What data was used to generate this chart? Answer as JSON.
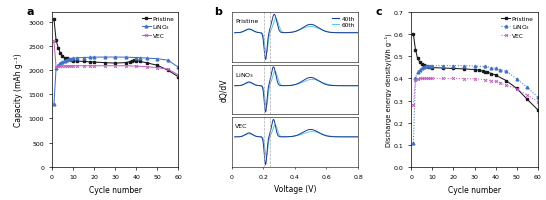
{
  "panel_a": {
    "title": "a",
    "xlabel": "Cycle number",
    "ylabel": "Capacity (mAh g⁻¹)",
    "xlim": [
      0,
      60
    ],
    "ylim": [
      0,
      3200
    ],
    "yticks": [
      0,
      500,
      1000,
      1500,
      2000,
      2500,
      3000
    ],
    "xticks": [
      0,
      10,
      20,
      30,
      40,
      50,
      60
    ]
  },
  "panel_b": {
    "title": "b",
    "xlabel": "Voltage (V)",
    "ylabel": "dQ/dV",
    "xlim": [
      0,
      0.8
    ],
    "xticks": [
      0,
      0.2,
      0.4,
      0.6,
      0.8
    ],
    "subpanels": [
      "Pristine",
      "LiNO₃",
      "VEC"
    ],
    "vlines": [
      0.2,
      0.25
    ],
    "dark_blue": "#1a3a8f",
    "light_blue": "#5bc8e8"
  },
  "panel_c": {
    "title": "c",
    "xlabel": "Cycle number",
    "ylabel": "Discharge energy density(Wh g⁻¹)",
    "xlim": [
      0,
      60
    ],
    "ylim": [
      0,
      0.7
    ],
    "yticks": [
      0,
      0.1,
      0.2,
      0.3,
      0.4,
      0.5,
      0.6,
      0.7
    ],
    "xticks": [
      0,
      10,
      20,
      30,
      40,
      50,
      60
    ]
  },
  "colors": {
    "black": "#1a1a1a",
    "blue": "#4472c4",
    "purple": "#c060c0"
  }
}
